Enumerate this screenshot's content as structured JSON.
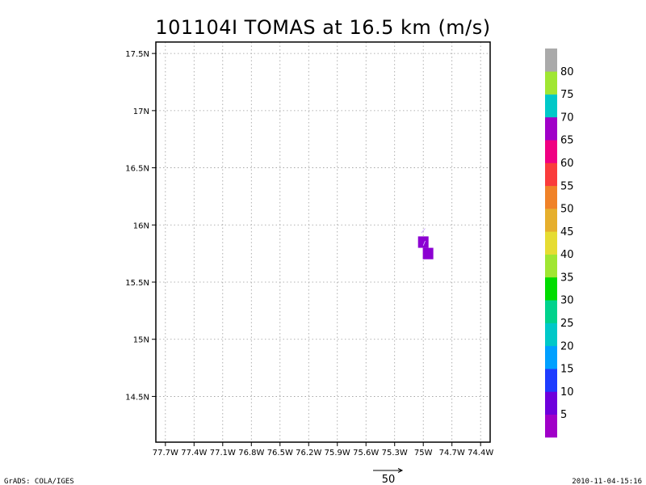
{
  "chart_data": {
    "type": "heatmap",
    "title": "101104I TOMAS at 16.5 km (m/s)",
    "x_ticks": [
      "77.7W",
      "77.4W",
      "77.1W",
      "76.8W",
      "76.5W",
      "76.2W",
      "75.9W",
      "75.6W",
      "75.3W",
      "75W",
      "74.7W",
      "74.4W"
    ],
    "y_ticks": [
      "14.5N",
      "15N",
      "15.5N",
      "16N",
      "16.5N",
      "17N",
      "17.5N"
    ],
    "xlim": [
      -77.8,
      -74.3
    ],
    "ylim": [
      14.1,
      17.6
    ],
    "grid": true,
    "grid_style": "dotted",
    "cells": [
      {
        "lon": -75.0,
        "lat": 15.85,
        "value": 5
      },
      {
        "lon": -74.95,
        "lat": 15.75,
        "value": 5
      }
    ],
    "colorbar": {
      "levels": [
        "5",
        "10",
        "15",
        "20",
        "25",
        "30",
        "35",
        "40",
        "45",
        "50",
        "55",
        "60",
        "65",
        "70",
        "75",
        "80"
      ],
      "colors": [
        "#a000c8",
        "#6e00dc",
        "#1e3cff",
        "#00a0ff",
        "#00c8c8",
        "#00d28c",
        "#00dc00",
        "#a0e632",
        "#e6dc32",
        "#e6af2d",
        "#f08228",
        "#fa3c3c",
        "#f00082",
        "#a000c8",
        "#00c8c8",
        "#a0e632",
        "#aaaaaa"
      ]
    },
    "vector_reference": {
      "label": "50"
    },
    "footer_left": "GrADS: COLA/IGES",
    "footer_right": "2010-11-04-15:16"
  }
}
